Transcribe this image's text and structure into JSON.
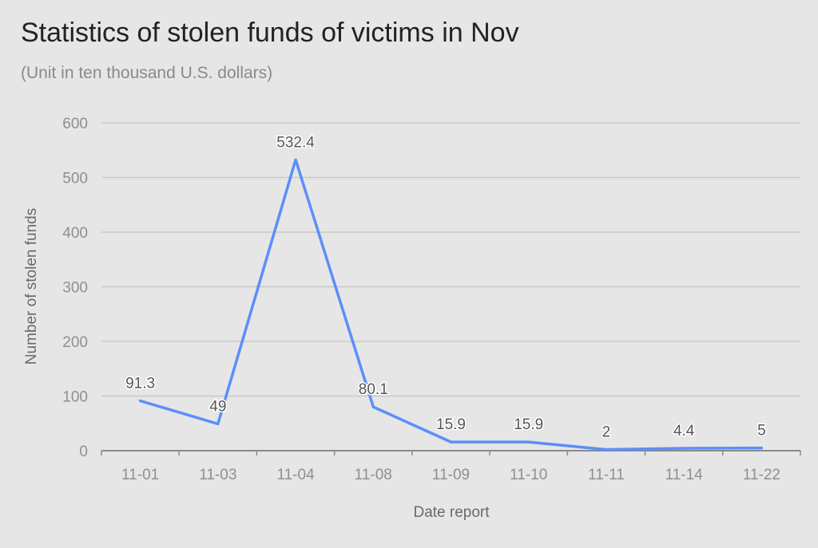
{
  "chart_data": {
    "type": "line",
    "title": "Statistics of stolen funds of victims in Nov",
    "subtitle": "(Unit in ten thousand U.S. dollars)",
    "xlabel": "Date report",
    "ylabel": "Number of stolen funds",
    "categories": [
      "11-01",
      "11-03",
      "11-04",
      "11-08",
      "11-09",
      "11-10",
      "11-11",
      "11-14",
      "11-22"
    ],
    "series": [
      {
        "values": [
          91.3,
          49,
          532.4,
          80.1,
          15.9,
          15.9,
          2,
          4.4,
          5
        ]
      }
    ],
    "ylim": [
      0,
      600
    ],
    "yticks": [
      0,
      100,
      200,
      300,
      400,
      500,
      600
    ],
    "grid": true,
    "legend": "none",
    "colors": {
      "line": "#5b8ff9",
      "grid": "#c8c8c8",
      "axis": "#8a8a8a",
      "background": "#e6e6e6"
    }
  }
}
